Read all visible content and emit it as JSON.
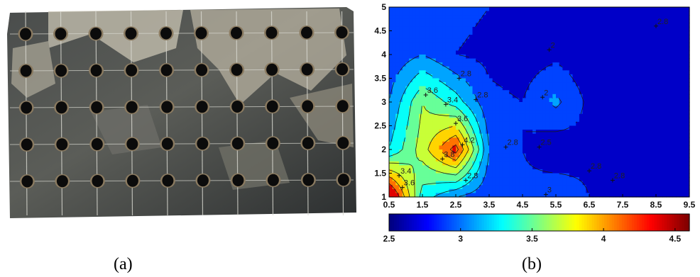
{
  "captions": {
    "a": "(a)",
    "b": "(b)"
  },
  "photo": {
    "subject": "metal plate specimen with 5 x 10 grid of drilled holes",
    "grid_rows": 5,
    "grid_cols": 10,
    "colors": {
      "plate_dark": "#3a3d3e",
      "plate_light": "#b9b5a6",
      "hole": "#0b0b0b",
      "rim": "#8a7a60"
    }
  },
  "chart_data": {
    "type": "heatmap",
    "subtype": "filled-contour",
    "title": "",
    "xlabel": "",
    "ylabel": "",
    "xlim": [
      0.5,
      9.5
    ],
    "ylim": [
      1,
      5
    ],
    "x_ticks": [
      "0.5",
      "1.5",
      "2.5",
      "3.5",
      "4.5",
      "5.5",
      "6.5",
      "7.5",
      "8.5",
      "9.5"
    ],
    "y_ticks": [
      "1",
      "1.5",
      "2",
      "2.5",
      "3",
      "3.5",
      "4",
      "4.5",
      "5"
    ],
    "colorbar": {
      "min": 2.5,
      "max": 4.6,
      "ticks": [
        "2.5",
        "3",
        "3.5",
        "4",
        "4.5"
      ],
      "colormap": "jet"
    },
    "contour_levels": [
      2.8,
      3.0,
      3.2,
      3.4,
      3.6,
      3.8,
      4.0,
      4.2
    ],
    "x": [
      0.5,
      1.5,
      2.5,
      3.5,
      4.5,
      5.5,
      6.5,
      7.5,
      8.5,
      9.5
    ],
    "y": [
      1,
      2,
      3,
      4,
      5
    ],
    "z": [
      [
        4.6,
        3.3,
        3.0,
        2.85,
        2.85,
        2.95,
        2.8,
        2.75,
        2.75,
        2.8
      ],
      [
        3.2,
        3.7,
        4.3,
        3.0,
        2.8,
        2.65,
        2.75,
        2.7,
        2.7,
        2.75
      ],
      [
        3.0,
        3.6,
        3.3,
        2.85,
        2.8,
        3.05,
        2.75,
        2.6,
        2.6,
        2.7
      ],
      [
        2.85,
        3.0,
        2.8,
        2.75,
        2.7,
        2.75,
        2.65,
        2.6,
        2.6,
        2.65
      ],
      [
        2.8,
        2.8,
        2.85,
        2.8,
        2.7,
        2.6,
        2.55,
        2.55,
        2.55,
        2.6
      ]
    ],
    "contour_labels": [
      {
        "text": "2.8",
        "x": 2.6,
        "y": 3.5
      },
      {
        "text": "2.8",
        "x": 3.1,
        "y": 3.05
      },
      {
        "text": "3.6",
        "x": 1.6,
        "y": 3.15
      },
      {
        "text": "3.4",
        "x": 2.2,
        "y": 2.95
      },
      {
        "text": "3.6",
        "x": 2.5,
        "y": 2.55
      },
      {
        "text": "4.2",
        "x": 2.7,
        "y": 2.1
      },
      {
        "text": "3.8",
        "x": 2.1,
        "y": 1.8
      },
      {
        "text": "2.8",
        "x": 4.0,
        "y": 2.05
      },
      {
        "text": "2.8",
        "x": 2.8,
        "y": 1.35
      },
      {
        "text": "2.8",
        "x": 6.5,
        "y": 1.55
      },
      {
        "text": "2.8",
        "x": 7.2,
        "y": 1.35
      },
      {
        "text": "2.8",
        "x": 8.5,
        "y": 4.6
      },
      {
        "text": "2",
        "x": 5.1,
        "y": 3.1
      },
      {
        "text": "2.5",
        "x": 5.0,
        "y": 2.05
      },
      {
        "text": "3",
        "x": 5.2,
        "y": 1.05
      },
      {
        "text": "2",
        "x": 5.3,
        "y": 4.1
      },
      {
        "text": "3.4",
        "x": 0.8,
        "y": 1.45
      },
      {
        "text": "3.6",
        "x": 0.9,
        "y": 1.2
      }
    ]
  }
}
